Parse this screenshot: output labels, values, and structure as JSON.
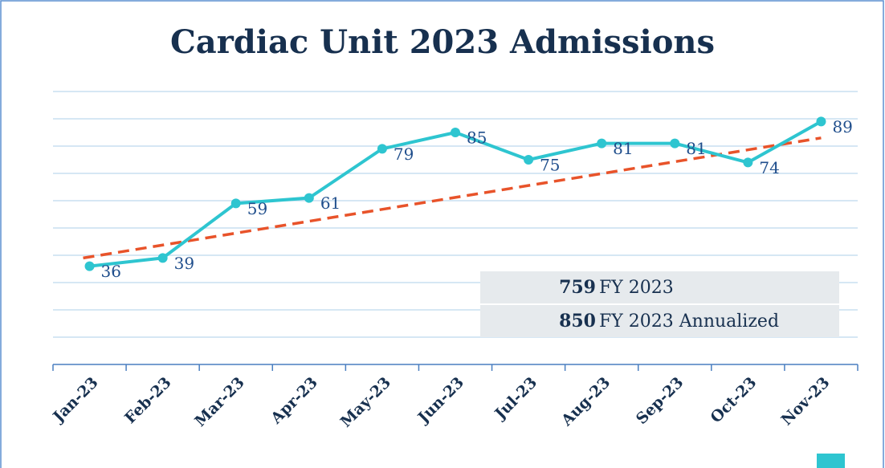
{
  "chart_data": {
    "type": "line",
    "title": "Cardiac Unit 2023 Admissions",
    "categories": [
      "Jan-23",
      "Feb-23",
      "Mar-23",
      "Apr-23",
      "May-23",
      "Jun-23",
      "Jul-23",
      "Aug-23",
      "Sep-23",
      "Oct-23",
      "Nov-23"
    ],
    "values": [
      36,
      39,
      59,
      61,
      79,
      85,
      75,
      81,
      81,
      74,
      89
    ],
    "color": "#2ec5d0",
    "trendline": {
      "color": "#e8532a",
      "start": 39,
      "end": 83
    },
    "ylim": [
      0,
      100
    ],
    "yticks": [
      0,
      10,
      20,
      30,
      40,
      50,
      60,
      70,
      80,
      90,
      100
    ],
    "grid": true,
    "summary": [
      {
        "value": 759,
        "label": "FY 2023"
      },
      {
        "value": 850,
        "label": "FY 2023 Annualized"
      }
    ]
  }
}
